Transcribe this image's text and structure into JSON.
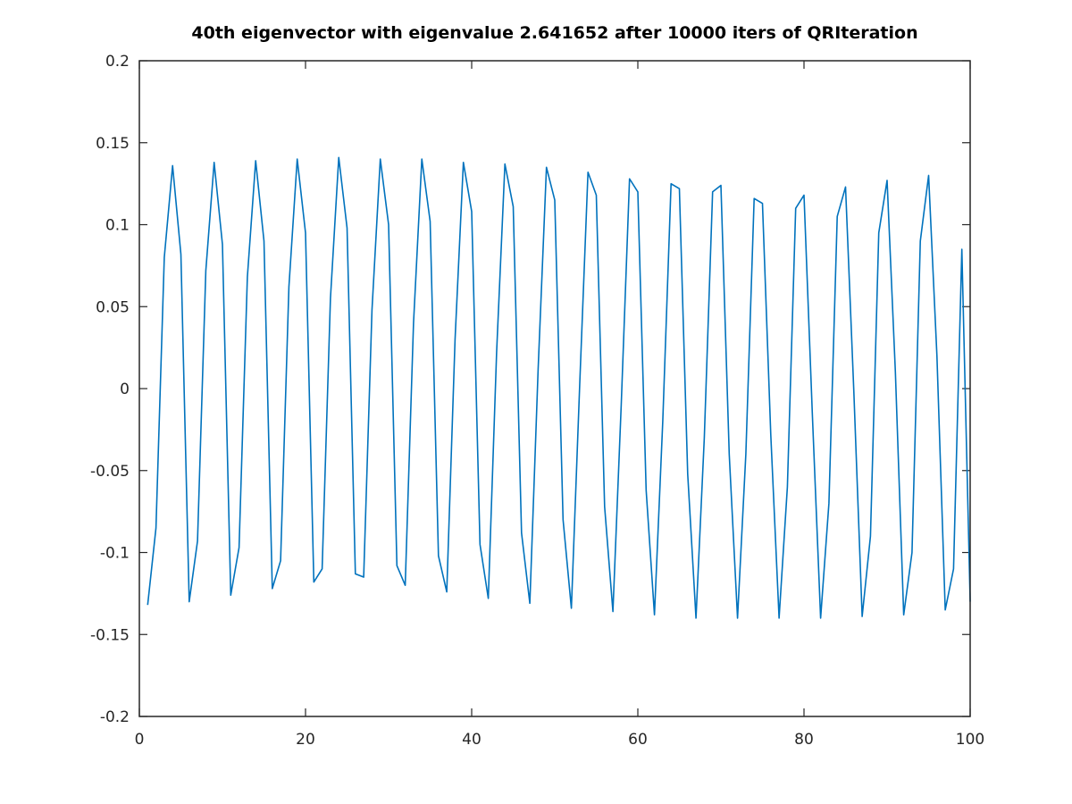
{
  "chart_data": {
    "type": "line",
    "title": "40th eigenvector with eigenvalue 2.641652 after 10000 iters of QRIteration",
    "xlabel": "",
    "ylabel": "",
    "xlim": [
      0,
      100
    ],
    "ylim": [
      -0.2,
      0.2
    ],
    "xticks": [
      0,
      20,
      40,
      60,
      80,
      100
    ],
    "xtick_labels": [
      "0",
      "20",
      "40",
      "60",
      "80",
      "100"
    ],
    "yticks": [
      -0.2,
      -0.15,
      -0.1,
      -0.05,
      0,
      0.05,
      0.1,
      0.15,
      0.2
    ],
    "ytick_labels": [
      "-0.2",
      "-0.15",
      "-0.1",
      "-0.05",
      "0",
      "0.05",
      "0.1",
      "0.15",
      "0.2"
    ],
    "grid": false,
    "line_color": "#0072bd",
    "series": [
      {
        "x": [
          1,
          2,
          3,
          4,
          5,
          6,
          7,
          8,
          9,
          10,
          11,
          12,
          13,
          14,
          15,
          16,
          17,
          18,
          19,
          20,
          21,
          22,
          23,
          24,
          25,
          26,
          27,
          28,
          29,
          30,
          31,
          32,
          33,
          34,
          35,
          36,
          37,
          38,
          39,
          40,
          41,
          42,
          43,
          44,
          45,
          46,
          47,
          48,
          49,
          50,
          51,
          52,
          53,
          54,
          55,
          56,
          57,
          58,
          59,
          60,
          61,
          62,
          63,
          64,
          65,
          66,
          67,
          68,
          69,
          70,
          71,
          72,
          73,
          74,
          75,
          76,
          77,
          78,
          79,
          80,
          81,
          82,
          83,
          84,
          85,
          86,
          87,
          88,
          89,
          90,
          91,
          92,
          93,
          94,
          95,
          96,
          97,
          98,
          99,
          100
        ],
        "values": [
          -0.132,
          -0.085,
          0.08,
          0.136,
          0.082,
          -0.13,
          -0.093,
          0.072,
          0.138,
          0.088,
          -0.126,
          -0.097,
          0.068,
          0.139,
          0.09,
          -0.122,
          -0.105,
          0.062,
          0.14,
          0.095,
          -0.118,
          -0.11,
          0.055,
          0.141,
          0.098,
          -0.113,
          -0.115,
          0.048,
          0.14,
          0.1,
          -0.108,
          -0.12,
          0.04,
          0.14,
          0.102,
          -0.102,
          -0.124,
          0.03,
          0.138,
          0.108,
          -0.095,
          -0.128,
          0.022,
          0.137,
          0.111,
          -0.088,
          -0.131,
          0.012,
          0.135,
          0.115,
          -0.08,
          -0.134,
          0.002,
          0.132,
          0.118,
          -0.072,
          -0.136,
          -0.01,
          0.128,
          0.12,
          -0.062,
          -0.138,
          -0.02,
          0.125,
          0.122,
          -0.052,
          -0.14,
          -0.03,
          0.12,
          0.124,
          -0.04,
          -0.14,
          -0.04,
          0.116,
          0.113,
          -0.028,
          -0.14,
          -0.06,
          0.11,
          0.118,
          -0.015,
          -0.14,
          -0.07,
          0.105,
          0.123,
          -0.002,
          -0.139,
          -0.09,
          0.095,
          0.127,
          0.01,
          -0.138,
          -0.1,
          0.09,
          0.13,
          0.02,
          -0.135,
          -0.11,
          0.085,
          -0.13
        ]
      }
    ]
  }
}
